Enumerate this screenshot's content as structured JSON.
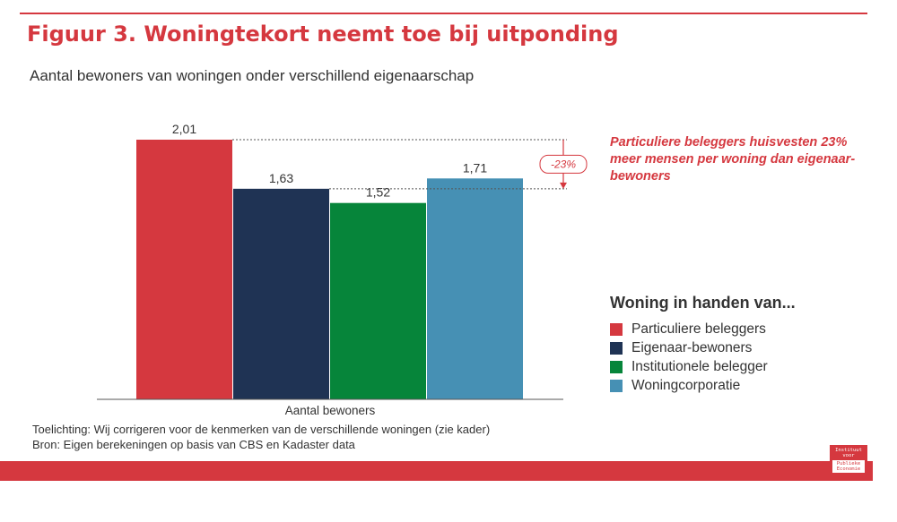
{
  "header": {
    "title": "Figuur 3. Woningtekort neemt toe bij uitponding",
    "subtitle": "Aantal bewoners van woningen onder verschillend eigenaarschap"
  },
  "colors": {
    "accent": "#d5383f",
    "particuliere": "#d5383f",
    "eigenaar": "#1f3354",
    "institutioneel": "#06853a",
    "corporatie": "#4690b4"
  },
  "annotation": {
    "diff_label": "-23%",
    "text": "Particuliere beleggers huisvesten 23% meer mensen per woning dan eigenaar-bewoners"
  },
  "legend": {
    "title": "Woning in handen van..."
  },
  "footer": {
    "note": "Toelichting: Wij corrigeren voor de kenmerken van de verschillende woningen (zie kader)",
    "source": "Bron: Eigen berekeningen op basis van CBS en Kadaster data"
  },
  "logo": {
    "line1": "Instituut",
    "line2": "voor",
    "line3": "Publieke",
    "line4": "Economie"
  },
  "chart_data": {
    "type": "bar",
    "categories": [
      "Aantal bewoners"
    ],
    "series": [
      {
        "name": "Particuliere beleggers",
        "values": [
          2.01
        ],
        "label": "2,01",
        "color": "#d5383f"
      },
      {
        "name": "Eigenaar-bewoners",
        "values": [
          1.63
        ],
        "label": "1,63",
        "color": "#1f3354"
      },
      {
        "name": "Institutionele belegger",
        "values": [
          1.52
        ],
        "label": "1,52",
        "color": "#06853a"
      },
      {
        "name": "Woningcorporatie",
        "values": [
          1.71
        ],
        "label": "1,71",
        "color": "#4690b4"
      }
    ],
    "xlabel": "Aantal bewoners",
    "ylabel": "",
    "ylim": [
      0,
      2.01
    ],
    "grid": false,
    "legend_position": "right"
  }
}
